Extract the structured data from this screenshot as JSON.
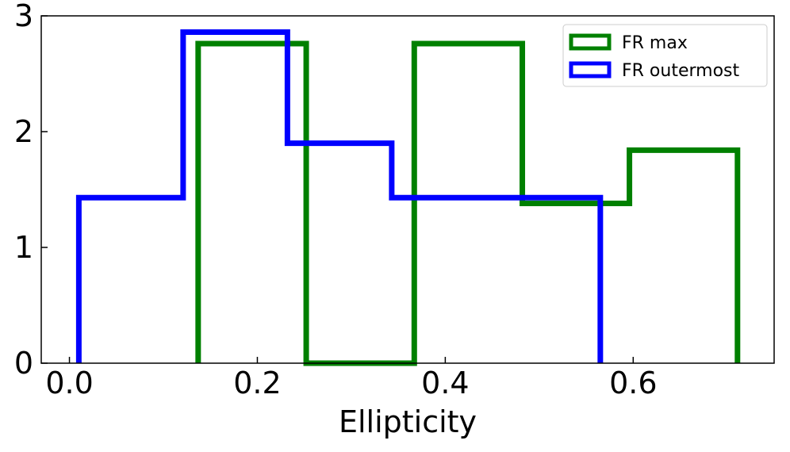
{
  "chart_data": {
    "type": "histogram",
    "xlabel": "Ellipticity",
    "ylabel": "",
    "xlim": [
      -0.03,
      0.75
    ],
    "ylim": [
      0,
      3
    ],
    "xticks": [
      {
        "value": 0.0,
        "label": "0.0"
      },
      {
        "value": 0.2,
        "label": "0.2"
      },
      {
        "value": 0.4,
        "label": "0.4"
      },
      {
        "value": 0.6,
        "label": "0.6"
      }
    ],
    "yticks": [
      {
        "value": 0,
        "label": "0"
      },
      {
        "value": 1,
        "label": "1"
      },
      {
        "value": 2,
        "label": "2"
      },
      {
        "value": 3,
        "label": "3"
      }
    ],
    "grid": false,
    "legend_position": "top-right",
    "series": [
      {
        "name": "FR max",
        "color": "#008000",
        "bin_edges": [
          0.137,
          0.252,
          0.367,
          0.482,
          0.596,
          0.711
        ],
        "values": [
          2.76,
          0.0,
          2.76,
          1.38,
          1.84
        ]
      },
      {
        "name": "FR outermost",
        "color": "#0000ff",
        "bin_edges": [
          0.01,
          0.121,
          0.232,
          0.343,
          0.454,
          0.565
        ],
        "values": [
          1.43,
          2.86,
          1.9,
          1.43,
          1.43
        ]
      }
    ]
  }
}
